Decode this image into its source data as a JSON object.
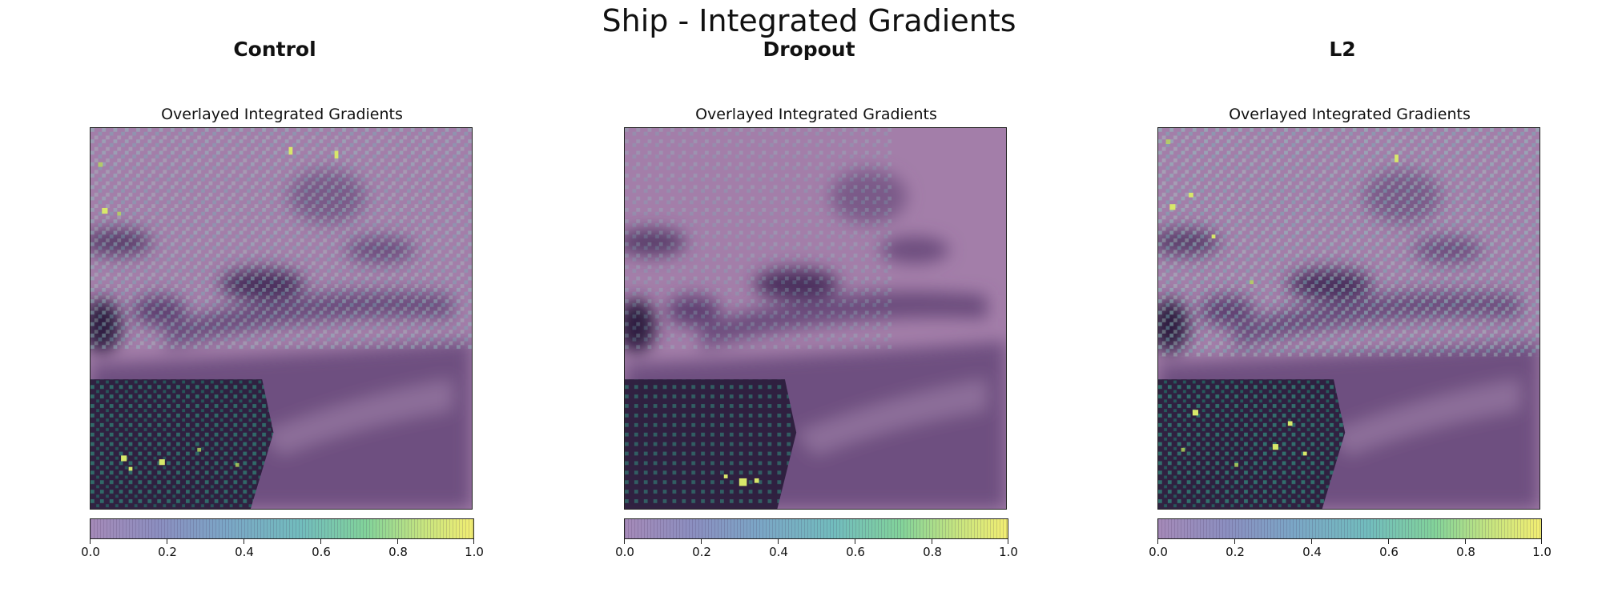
{
  "figure": {
    "title": "Ship - Integrated Gradients",
    "panels": [
      {
        "title": "Control",
        "subtitle": "Overlayed Integrated Gradients"
      },
      {
        "title": "Dropout",
        "subtitle": "Overlayed Integrated Gradients"
      },
      {
        "title": "L2",
        "subtitle": "Overlayed Integrated Gradients"
      }
    ],
    "colorbar": {
      "ticks": [
        "0.0",
        "0.2",
        "0.4",
        "0.6",
        "0.8",
        "1.0"
      ],
      "range": [
        0.0,
        1.0
      ],
      "colors": [
        "#a58ab8",
        "#7ba6c6",
        "#72bdbd",
        "#82d39a",
        "#f2ee72"
      ]
    },
    "icons": [
      "colorbar"
    ]
  }
}
